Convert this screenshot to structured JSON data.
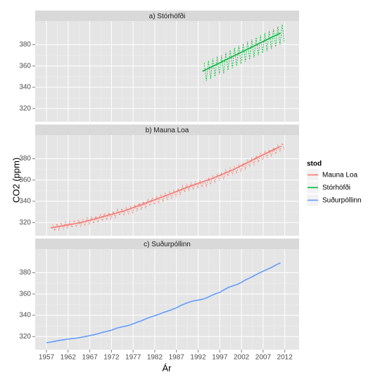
{
  "chart_data": {
    "type": "line",
    "x_label": "Ár",
    "y_label": "CO2 (ppm)",
    "legend_title": "stod",
    "legend": "right",
    "grid": true,
    "xlim": [
      1954.4,
      2015.3
    ],
    "xticks": [
      1957,
      1962,
      1967,
      1972,
      1977,
      1982,
      1987,
      1992,
      1997,
      2002,
      2007,
      2012
    ],
    "ylim": [
      307.6,
      402.2
    ],
    "yticks": [
      320,
      340,
      360,
      380
    ],
    "facets": [
      "a) Stórhöfði",
      "b) Mauna Loa",
      "c) Suðurpóllinn"
    ],
    "series": [
      {
        "name": "Mauna Loa",
        "color": "#F8766D",
        "facet": "b) Mauna Loa",
        "x": [
          1958.4,
          1958.9,
          1959.4,
          1959.9,
          1960.4,
          1960.9,
          1961.4,
          1961.9,
          1962.4,
          1962.9,
          1963.4,
          1963.9,
          1964.4,
          1964.9,
          1965.4,
          1965.9,
          1966.4,
          1966.9,
          1967.4,
          1967.9,
          1968.4,
          1968.9,
          1969.4,
          1969.9,
          1970.4,
          1970.9,
          1971.4,
          1971.9,
          1972.4,
          1972.9,
          1973.4,
          1973.9,
          1974.4,
          1974.9,
          1975.4,
          1975.9,
          1976.4,
          1976.9,
          1977.4,
          1977.9,
          1978.4,
          1978.9,
          1979.4,
          1979.9,
          1980.4,
          1980.9,
          1981.4,
          1981.9,
          1982.4,
          1982.9,
          1983.4,
          1983.9,
          1984.4,
          1984.9,
          1985.4,
          1985.9,
          1986.4,
          1986.9,
          1987.4,
          1987.9,
          1988.4,
          1988.9,
          1989.4,
          1989.9,
          1990.4,
          1990.9,
          1991.4,
          1991.9,
          1992.4,
          1992.9,
          1993.4,
          1993.9,
          1994.4,
          1994.9,
          1995.4,
          1995.9,
          1996.4,
          1996.9,
          1997.4,
          1997.9,
          1998.4,
          1998.9,
          1999.4,
          1999.9,
          2000.4,
          2000.9,
          2001.4,
          2001.9,
          2002.4,
          2002.9,
          2003.4,
          2003.9,
          2004.4,
          2004.9,
          2005.4,
          2005.9,
          2006.4,
          2006.9,
          2007.4,
          2007.9,
          2008.4,
          2008.9,
          2009.4,
          2009.9,
          2010.4,
          2010.9,
          2011.4,
          2011.9
        ],
        "values": [
          318.3,
          312.3,
          319.0,
          313.0,
          319.9,
          313.9,
          320.6,
          314.6,
          321.4,
          315.4,
          322.0,
          316.0,
          322.6,
          316.6,
          323.0,
          317.0,
          324.4,
          318.4,
          325.2,
          319.2,
          326.0,
          320.0,
          327.6,
          321.6,
          328.7,
          322.7,
          329.3,
          323.3,
          330.5,
          324.5,
          332.7,
          326.7,
          333.2,
          327.2,
          334.1,
          328.1,
          335.0,
          329.0,
          336.8,
          330.8,
          338.4,
          332.4,
          339.8,
          333.8,
          341.7,
          335.7,
          343.1,
          337.1,
          344.4,
          338.4,
          346.0,
          340.0,
          347.6,
          341.6,
          349.0,
          343.0,
          350.4,
          344.4,
          352.2,
          346.2,
          354.6,
          348.6,
          356.1,
          350.1,
          357.4,
          351.4,
          358.6,
          352.6,
          359.4,
          353.4,
          360.1,
          354.1,
          361.8,
          355.8,
          363.8,
          357.8,
          365.6,
          359.6,
          366.7,
          360.7,
          369.7,
          363.7,
          371.4,
          365.4,
          372.6,
          366.6,
          374.1,
          368.1,
          376.2,
          370.2,
          378.8,
          372.8,
          380.5,
          374.5,
          382.8,
          376.8,
          384.9,
          378.9,
          386.8,
          380.8,
          388.6,
          382.6,
          390.4,
          384.4,
          392.9,
          386.9,
          394.6,
          388.6
        ],
        "trend_x": [
          1958,
          1965,
          1970,
          1975,
          1980,
          1985,
          1990,
          1995,
          2000,
          2005,
          2011
        ],
        "trend": [
          315,
          320,
          325.5,
          331,
          338.5,
          346,
          354,
          361,
          369.5,
          379.8,
          391.6
        ]
      },
      {
        "name": "Stórhöfði",
        "color": "#00BA38",
        "facet": "a) Stórhöfði",
        "x": [
          1993.4,
          1993.9,
          1994.4,
          1994.9,
          1995.4,
          1995.9,
          1996.4,
          1996.9,
          1997.4,
          1997.9,
          1998.4,
          1998.9,
          1999.4,
          1999.9,
          2000.4,
          2000.9,
          2001.4,
          2001.9,
          2002.4,
          2002.9,
          2003.4,
          2003.9,
          2004.4,
          2004.9,
          2005.4,
          2005.9,
          2006.4,
          2006.9,
          2007.4,
          2007.9,
          2008.4,
          2008.9,
          2009.4,
          2009.9,
          2010.4,
          2010.9,
          2011.4,
          2011.9
        ],
        "values": [
          363,
          346,
          365,
          348,
          367,
          350,
          369,
          352,
          370,
          353,
          373,
          356,
          375,
          358,
          377,
          360,
          379,
          362,
          381,
          364,
          383,
          366,
          385,
          368,
          387,
          370,
          389,
          372,
          391,
          374,
          393,
          376,
          395,
          378,
          397,
          380,
          399,
          382
        ],
        "trend_x": [
          1993,
          2011
        ],
        "trend": [
          355,
          391
        ]
      },
      {
        "name": "Suðurpóllinn",
        "color": "#619CFF",
        "facet": "c) Suðurpóllinn",
        "x": [
          1957,
          1958,
          1959,
          1960,
          1961,
          1962,
          1963,
          1964,
          1965,
          1966,
          1967,
          1968,
          1969,
          1970,
          1971,
          1972,
          1973,
          1974,
          1975,
          1976,
          1977,
          1978,
          1979,
          1980,
          1981,
          1982,
          1983,
          1984,
          1985,
          1986,
          1987,
          1988,
          1989,
          1990,
          1991,
          1992,
          1993,
          1994,
          1995,
          1996,
          1997,
          1998,
          1999,
          2000,
          2001,
          2002,
          2003,
          2004,
          2005,
          2006,
          2007,
          2008,
          2009,
          2010,
          2011
        ],
        "values": [
          314.2,
          314.8,
          315.6,
          316.4,
          317.0,
          317.6,
          318.1,
          318.6,
          319.2,
          320.0,
          320.9,
          321.7,
          322.8,
          324.0,
          324.9,
          326.0,
          327.6,
          328.7,
          329.6,
          330.5,
          332.0,
          333.6,
          335.0,
          336.8,
          338.3,
          339.6,
          341.0,
          342.6,
          344.0,
          345.4,
          347.0,
          349.2,
          350.9,
          352.4,
          353.6,
          354.3,
          355.0,
          356.5,
          358.4,
          360.2,
          361.5,
          364.0,
          366.2,
          367.6,
          369.0,
          371.0,
          373.4,
          375.2,
          377.4,
          379.5,
          381.4,
          383.3,
          385.1,
          387.4,
          389.2
        ]
      }
    ]
  }
}
